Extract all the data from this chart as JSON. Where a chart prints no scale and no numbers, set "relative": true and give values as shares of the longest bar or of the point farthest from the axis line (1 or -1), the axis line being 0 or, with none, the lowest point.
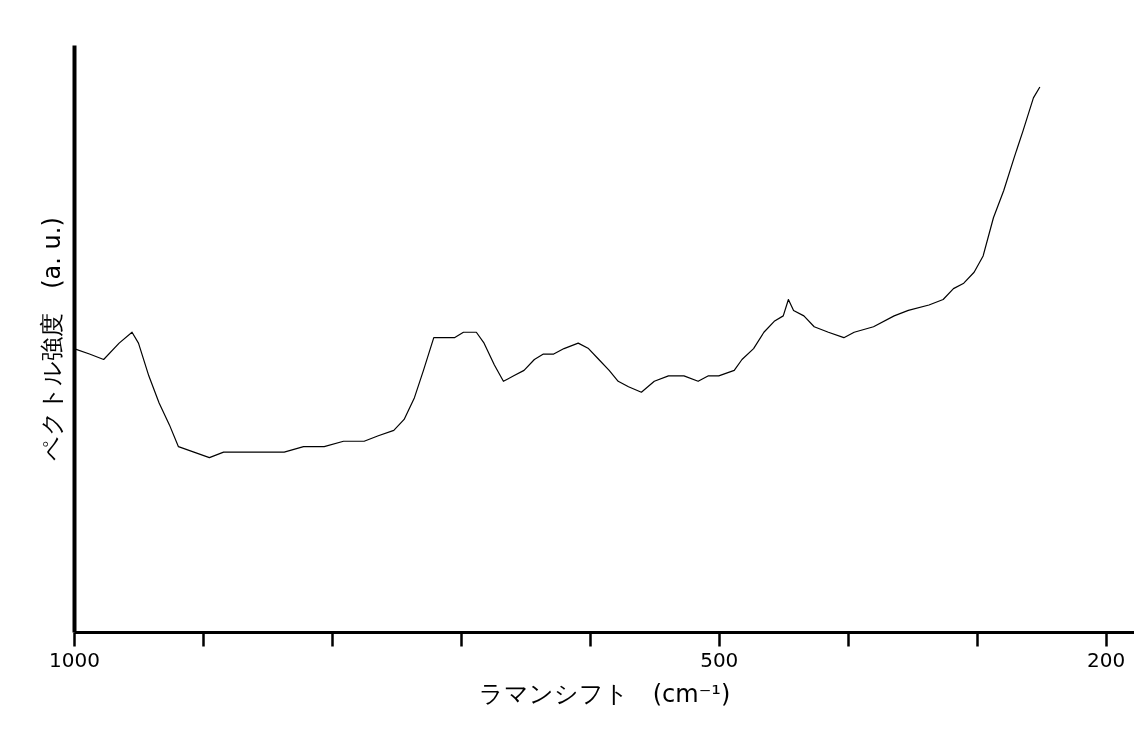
{
  "chart_data": {
    "type": "line",
    "relative": true,
    "xlabel": "ラマンシフト　(cm⁻¹)",
    "ylabel": "ペクトル強度　(a. u.)",
    "xlim": [
      1000,
      178
    ],
    "xticks": [
      1000,
      {
        "value": 900,
        "label": null
      },
      {
        "value": 800,
        "label": null
      },
      {
        "value": 700,
        "label": null
      },
      {
        "value": 600,
        "label": null
      },
      500,
      {
        "value": 400,
        "label": null
      },
      {
        "value": 300,
        "label": null
      },
      200
    ],
    "x": [
      1000,
      988,
      977,
      965,
      955,
      950,
      942,
      934,
      926,
      919,
      907,
      895,
      884,
      868,
      853,
      837,
      822,
      806,
      791,
      775,
      764,
      752,
      744,
      736,
      729,
      721,
      713,
      705,
      698,
      688,
      682,
      674,
      667,
      659,
      651,
      643,
      636,
      628,
      620,
      609,
      601,
      593,
      585,
      578,
      570,
      560,
      550,
      539,
      527,
      516,
      508,
      500,
      488,
      482,
      473,
      465,
      457,
      450,
      446,
      442,
      434,
      426,
      415,
      403,
      395,
      380,
      364,
      353,
      337,
      326,
      318,
      310,
      302,
      295,
      287,
      279,
      271,
      264,
      256,
      251
    ],
    "series": [
      {
        "color": "#000000",
        "values": [
          0.52,
          0.51,
          0.5,
          0.53,
          0.55,
          0.53,
          0.47,
          0.42,
          0.38,
          0.34,
          0.33,
          0.32,
          0.33,
          0.33,
          0.33,
          0.33,
          0.34,
          0.34,
          0.35,
          0.35,
          0.36,
          0.37,
          0.39,
          0.43,
          0.48,
          0.54,
          0.54,
          0.54,
          0.55,
          0.55,
          0.53,
          0.49,
          0.46,
          0.47,
          0.48,
          0.5,
          0.51,
          0.51,
          0.52,
          0.53,
          0.52,
          0.5,
          0.48,
          0.46,
          0.45,
          0.44,
          0.46,
          0.47,
          0.47,
          0.46,
          0.47,
          0.47,
          0.48,
          0.5,
          0.52,
          0.55,
          0.57,
          0.58,
          0.61,
          0.59,
          0.58,
          0.56,
          0.55,
          0.54,
          0.55,
          0.56,
          0.58,
          0.59,
          0.6,
          0.61,
          0.63,
          0.64,
          0.66,
          0.69,
          0.76,
          0.81,
          0.87,
          0.92,
          0.98,
          1
        ]
      }
    ],
    "grid": false,
    "line_style": "solid",
    "marker": "none"
  }
}
